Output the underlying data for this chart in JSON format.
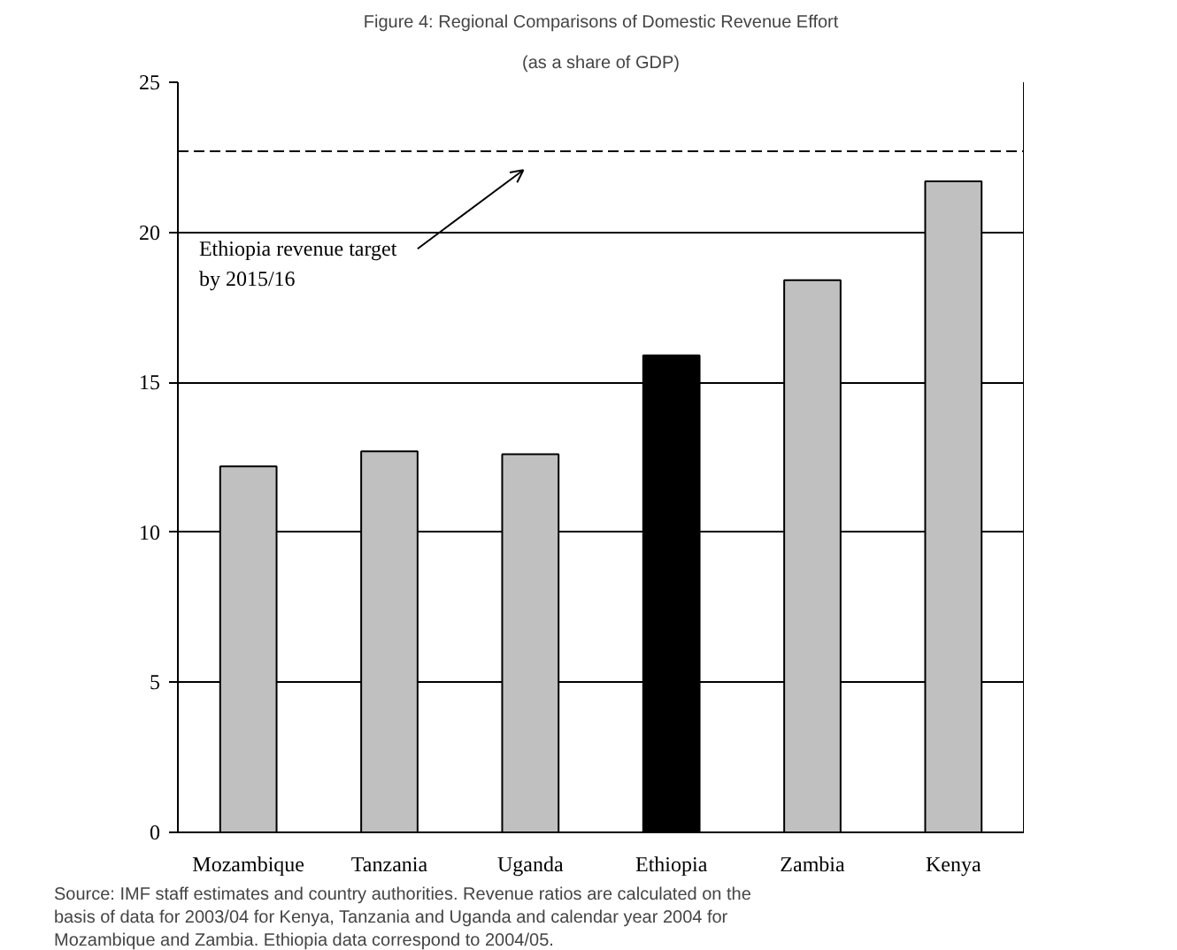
{
  "chart_data": {
    "type": "bar",
    "title": "Figure 4: Regional Comparisons of Domestic Revenue Effort",
    "subtitle": "(as a share of GDP)",
    "categories": [
      "Mozambique",
      "Tanzania",
      "Uganda",
      "Ethiopia",
      "Zambia",
      "Kenya"
    ],
    "values": [
      12.2,
      12.7,
      12.6,
      15.9,
      18.4,
      21.7
    ],
    "colors": [
      "#c0c0c0",
      "#c0c0c0",
      "#c0c0c0",
      "#000000",
      "#c0c0c0",
      "#c0c0c0"
    ],
    "ylim": [
      0,
      25
    ],
    "yticks": [
      0,
      5,
      10,
      15,
      20,
      25
    ],
    "grid": "y",
    "ref_lines": [
      {
        "axis": "y",
        "value": 22.7,
        "label": "Ethiopia revenue target\nby 2015/16",
        "color": "#000000",
        "line_style": "dashed"
      }
    ],
    "annotations": [
      "Source: IMF staff estimates and country authorities. Revenue ratios are calculated on the basis of data for 2003/04 for Kenya, Tanzania and Uganda and calendar year 2004 for Mozambique and Zambia. Ethiopia data correspond to 2004/05."
    ]
  }
}
